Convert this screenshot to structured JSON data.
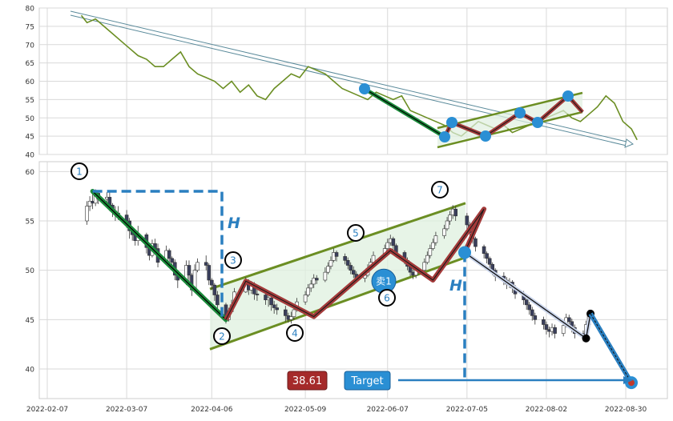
{
  "chart_data": [
    {
      "type": "line",
      "panel": "indicator",
      "ylim": [
        40,
        80
      ],
      "yticks": [
        "40",
        "45",
        "50",
        "55",
        "60",
        "65",
        "70",
        "75",
        "80"
      ],
      "grid": true,
      "series": [
        {
          "color": "#6b8e23",
          "x": [
            "2022-02-19",
            "2022-02-21",
            "2022-02-24",
            "2022-02-27",
            "2022-03-02",
            "2022-03-05",
            "2022-03-08",
            "2022-03-11",
            "2022-03-14",
            "2022-03-17",
            "2022-03-20",
            "2022-03-23",
            "2022-03-26",
            "2022-03-29",
            "2022-04-01",
            "2022-04-04",
            "2022-04-07",
            "2022-04-10",
            "2022-04-13",
            "2022-04-16",
            "2022-04-19",
            "2022-04-22",
            "2022-04-25",
            "2022-04-28",
            "2022-05-01",
            "2022-05-04",
            "2022-05-07",
            "2022-05-10",
            "2022-05-13",
            "2022-05-16",
            "2022-05-19",
            "2022-05-22",
            "2022-05-25",
            "2022-05-28",
            "2022-05-31",
            "2022-06-03",
            "2022-06-06",
            "2022-06-09",
            "2022-06-12",
            "2022-06-15",
            "2022-06-18",
            "2022-06-21",
            "2022-06-24",
            "2022-06-27",
            "2022-06-30",
            "2022-07-03",
            "2022-07-06",
            "2022-07-09",
            "2022-07-12",
            "2022-07-15",
            "2022-07-18",
            "2022-07-21",
            "2022-07-24",
            "2022-07-27",
            "2022-07-30",
            "2022-08-02",
            "2022-08-05",
            "2022-08-08",
            "2022-08-11",
            "2022-08-14",
            "2022-08-17",
            "2022-08-20",
            "2022-08-23",
            "2022-08-26",
            "2022-08-29",
            "2022-09-01",
            "2022-09-03"
          ],
          "values": [
            78,
            76,
            77,
            75,
            73,
            71,
            69,
            67,
            66,
            64,
            64,
            66,
            68,
            64,
            62,
            61,
            60,
            58,
            60,
            57,
            59,
            56,
            55,
            58,
            60,
            62,
            61,
            64,
            63,
            62,
            60,
            58,
            57,
            56,
            55,
            57,
            56,
            55,
            56,
            52,
            51,
            50,
            49,
            48,
            46,
            45,
            47,
            49,
            48,
            47,
            48,
            46,
            47,
            48,
            49,
            50,
            51,
            52,
            50,
            49,
            51,
            53,
            56,
            54,
            49,
            47,
            44
          ]
        }
      ]
    },
    {
      "type": "candlestick",
      "panel": "price",
      "ylim": [
        37,
        61
      ],
      "yticks": [
        "40",
        "45",
        "50",
        "55",
        "60"
      ],
      "xlim": [
        "2022-02-07",
        "2022-09-10"
      ],
      "xticks": [
        "2022-02-07",
        "2022-03-07",
        "2022-04-06",
        "2022-05-09",
        "2022-06-07",
        "2022-07-05",
        "2022-08-02",
        "2022-08-30"
      ],
      "grid": true,
      "candles": [
        [
          "2022-02-21",
          55.0,
          56.5,
          54.6,
          57.0
        ],
        [
          "2022-02-22",
          56.5,
          57.0,
          56.0,
          57.5
        ],
        [
          "2022-02-23",
          57.0,
          56.8,
          56.2,
          57.7
        ],
        [
          "2022-02-24",
          56.8,
          57.8,
          56.5,
          58.2
        ],
        [
          "2022-02-25",
          57.8,
          57.2,
          56.7,
          58.1
        ],
        [
          "2022-02-28",
          57.2,
          57.4,
          56.8,
          57.9
        ],
        [
          "2022-03-01",
          57.4,
          56.6,
          56.0,
          57.9
        ],
        [
          "2022-03-02",
          56.6,
          56.0,
          55.4,
          56.8
        ],
        [
          "2022-03-03",
          56.0,
          55.8,
          55.0,
          56.5
        ],
        [
          "2022-03-04",
          55.8,
          55.6,
          55.1,
          56.5
        ],
        [
          "2022-03-07",
          55.6,
          55.0,
          54.3,
          56.1
        ],
        [
          "2022-03-08",
          55.0,
          54.0,
          53.2,
          55.3
        ],
        [
          "2022-03-09",
          54.0,
          53.6,
          53.0,
          54.4
        ],
        [
          "2022-03-10",
          53.6,
          53.0,
          52.5,
          54.1
        ],
        [
          "2022-03-11",
          53.0,
          53.6,
          52.5,
          54.5
        ],
        [
          "2022-03-14",
          53.6,
          52.3,
          51.7,
          53.8
        ],
        [
          "2022-03-15",
          52.3,
          51.5,
          51.0,
          52.7
        ],
        [
          "2022-03-16",
          51.5,
          52.7,
          51.3,
          53.1
        ],
        [
          "2022-03-17",
          52.7,
          52.2,
          51.7,
          53.2
        ],
        [
          "2022-03-18",
          52.2,
          50.8,
          50.3,
          52.7
        ],
        [
          "2022-03-21",
          50.8,
          52.0,
          50.7,
          52.5
        ],
        [
          "2022-03-22",
          52.0,
          51.2,
          50.7,
          52.2
        ],
        [
          "2022-03-23",
          51.2,
          50.8,
          50.3,
          51.4
        ],
        [
          "2022-03-24",
          50.8,
          49.5,
          49.0,
          51.1
        ],
        [
          "2022-03-25",
          49.5,
          49.0,
          48.2,
          49.8
        ],
        [
          "2022-03-28",
          49.0,
          50.5,
          48.5,
          51.0
        ],
        [
          "2022-03-29",
          50.5,
          49.5,
          48.8,
          51.0
        ],
        [
          "2022-03-30",
          49.5,
          48.0,
          47.4,
          49.7
        ],
        [
          "2022-03-31",
          48.0,
          50.0,
          47.8,
          50.6
        ],
        [
          "2022-04-01",
          50.0,
          50.8,
          49.8,
          51.2
        ],
        [
          "2022-04-04",
          50.8,
          50.5,
          50.0,
          51.5
        ],
        [
          "2022-04-05",
          50.5,
          49.0,
          48.5,
          50.7
        ],
        [
          "2022-04-06",
          49.0,
          48.5,
          48.0,
          49.2
        ],
        [
          "2022-04-07",
          48.5,
          47.5,
          46.9,
          48.7
        ],
        [
          "2022-04-08",
          47.5,
          46.5,
          46.1,
          47.9
        ],
        [
          "2022-04-11",
          46.5,
          45.0,
          44.6,
          46.7
        ],
        [
          "2022-04-12",
          45.0,
          45.8,
          44.8,
          46.2
        ],
        [
          "2022-04-13",
          45.8,
          46.5,
          45.6,
          47.0
        ],
        [
          "2022-04-14",
          46.5,
          47.8,
          46.3,
          48.2
        ],
        [
          "2022-04-18",
          47.8,
          48.9,
          47.7,
          49.3
        ],
        [
          "2022-04-19",
          48.9,
          48.0,
          47.5,
          49.1
        ],
        [
          "2022-04-20",
          48.0,
          48.5,
          47.6,
          48.9
        ],
        [
          "2022-04-21",
          48.5,
          47.6,
          47.0,
          48.8
        ],
        [
          "2022-04-22",
          47.6,
          47.5,
          46.9,
          48.3
        ],
        [
          "2022-04-25",
          47.5,
          47.0,
          46.5,
          48.0
        ],
        [
          "2022-04-26",
          47.0,
          47.2,
          46.3,
          47.6
        ],
        [
          "2022-04-27",
          47.2,
          46.5,
          45.9,
          47.5
        ],
        [
          "2022-04-28",
          46.5,
          46.2,
          45.6,
          46.9
        ],
        [
          "2022-04-29",
          46.2,
          46.0,
          45.5,
          46.6
        ],
        [
          "2022-05-02",
          46.0,
          45.4,
          44.8,
          46.4
        ],
        [
          "2022-05-03",
          45.4,
          45.0,
          44.7,
          45.7
        ],
        [
          "2022-05-04",
          45.0,
          45.3,
          44.6,
          45.8
        ],
        [
          "2022-05-05",
          45.3,
          46.0,
          45.0,
          46.4
        ],
        [
          "2022-05-06",
          46.0,
          46.8,
          45.8,
          47.2
        ],
        [
          "2022-05-09",
          46.8,
          47.5,
          46.5,
          47.9
        ],
        [
          "2022-05-10",
          47.5,
          48.2,
          47.3,
          48.6
        ],
        [
          "2022-05-11",
          48.2,
          48.6,
          47.8,
          49.0
        ],
        [
          "2022-05-12",
          48.6,
          49.2,
          48.2,
          49.6
        ],
        [
          "2022-05-13",
          49.2,
          49.0,
          48.6,
          49.5
        ],
        [
          "2022-05-16",
          49.0,
          49.8,
          48.8,
          50.3
        ],
        [
          "2022-05-17",
          49.8,
          50.4,
          49.6,
          50.8
        ],
        [
          "2022-05-18",
          50.4,
          51.0,
          50.1,
          51.4
        ],
        [
          "2022-05-19",
          51.0,
          51.8,
          50.8,
          52.2
        ],
        [
          "2022-05-20",
          51.8,
          51.4,
          50.9,
          52.0
        ],
        [
          "2022-05-23",
          51.4,
          51.0,
          50.6,
          51.7
        ],
        [
          "2022-05-24",
          51.0,
          50.5,
          50.1,
          51.3
        ],
        [
          "2022-05-25",
          50.5,
          50.0,
          49.6,
          50.8
        ],
        [
          "2022-05-26",
          50.0,
          49.6,
          49.2,
          50.4
        ],
        [
          "2022-05-27",
          49.6,
          49.2,
          48.8,
          49.9
        ],
        [
          "2022-05-30",
          49.2,
          49.5,
          48.8,
          49.9
        ],
        [
          "2022-05-31",
          49.5,
          50.2,
          49.3,
          50.6
        ],
        [
          "2022-06-01",
          50.2,
          50.8,
          50.0,
          51.2
        ],
        [
          "2022-06-02",
          50.8,
          51.5,
          50.6,
          51.9
        ],
        [
          "2022-06-06",
          51.5,
          52.2,
          51.3,
          52.6
        ],
        [
          "2022-06-07",
          52.2,
          52.8,
          52.0,
          53.2
        ],
        [
          "2022-06-08",
          52.8,
          53.2,
          52.5,
          53.6
        ],
        [
          "2022-06-09",
          53.2,
          52.5,
          52.0,
          53.4
        ],
        [
          "2022-06-10",
          52.5,
          51.8,
          51.3,
          52.7
        ],
        [
          "2022-06-13",
          51.8,
          51.0,
          50.6,
          52.0
        ],
        [
          "2022-06-14",
          51.0,
          50.4,
          50.0,
          51.3
        ],
        [
          "2022-06-15",
          50.4,
          49.8,
          49.4,
          50.7
        ],
        [
          "2022-06-16",
          49.8,
          49.5,
          49.1,
          50.1
        ],
        [
          "2022-06-17",
          49.5,
          50.0,
          49.2,
          50.4
        ],
        [
          "2022-06-20",
          50.0,
          50.8,
          49.8,
          51.2
        ],
        [
          "2022-06-21",
          50.8,
          51.5,
          50.6,
          51.9
        ],
        [
          "2022-06-22",
          51.5,
          52.2,
          51.2,
          52.6
        ],
        [
          "2022-06-23",
          52.2,
          52.8,
          52.0,
          53.2
        ],
        [
          "2022-06-24",
          52.8,
          53.5,
          52.5,
          53.9
        ],
        [
          "2022-06-27",
          53.5,
          54.2,
          53.2,
          54.6
        ],
        [
          "2022-06-28",
          54.2,
          55.0,
          54.0,
          55.4
        ],
        [
          "2022-06-29",
          55.0,
          55.6,
          54.6,
          56.0
        ],
        [
          "2022-06-30",
          55.6,
          56.2,
          55.2,
          56.6
        ],
        [
          "2022-07-01",
          56.2,
          55.5,
          55.0,
          56.5
        ],
        [
          "2022-07-05",
          55.5,
          54.6,
          54.1,
          55.8
        ],
        [
          "2022-07-06",
          54.6,
          53.8,
          53.3,
          54.9
        ],
        [
          "2022-07-07",
          53.8,
          53.2,
          52.7,
          54.1
        ],
        [
          "2022-07-08",
          53.2,
          52.4,
          51.9,
          53.4
        ],
        [
          "2022-07-11",
          52.4,
          51.7,
          51.2,
          52.6
        ],
        [
          "2022-07-12",
          51.7,
          51.2,
          50.7,
          51.9
        ],
        [
          "2022-07-13",
          51.2,
          50.6,
          50.1,
          51.4
        ],
        [
          "2022-07-14",
          50.6,
          50.0,
          49.5,
          50.8
        ],
        [
          "2022-07-15",
          50.0,
          49.4,
          48.9,
          50.2
        ],
        [
          "2022-07-18",
          49.4,
          49.0,
          48.5,
          49.8
        ],
        [
          "2022-07-19",
          49.0,
          48.6,
          48.1,
          49.3
        ],
        [
          "2022-07-20",
          48.6,
          48.8,
          48.2,
          49.2
        ],
        [
          "2022-07-21",
          48.8,
          48.2,
          47.7,
          49.0
        ],
        [
          "2022-07-22",
          48.2,
          47.6,
          47.1,
          48.5
        ],
        [
          "2022-07-25",
          47.6,
          47.0,
          46.5,
          47.9
        ],
        [
          "2022-07-26",
          47.0,
          46.5,
          46.0,
          47.3
        ],
        [
          "2022-07-27",
          46.5,
          46.0,
          45.5,
          46.8
        ],
        [
          "2022-07-28",
          46.0,
          45.4,
          44.9,
          46.3
        ],
        [
          "2022-07-29",
          45.4,
          45.0,
          44.5,
          45.7
        ],
        [
          "2022-08-01",
          45.0,
          44.5,
          44.0,
          45.3
        ],
        [
          "2022-08-02",
          44.5,
          44.0,
          43.5,
          44.8
        ],
        [
          "2022-08-03",
          44.0,
          43.8,
          43.2,
          44.3
        ],
        [
          "2022-08-04",
          43.8,
          44.2,
          43.4,
          44.6
        ],
        [
          "2022-08-05",
          44.2,
          43.6,
          43.1,
          44.5
        ],
        [
          "2022-08-08",
          43.6,
          44.4,
          43.3,
          44.8
        ],
        [
          "2022-08-09",
          44.4,
          45.2,
          44.2,
          45.6
        ],
        [
          "2022-08-10",
          45.2,
          44.8,
          44.3,
          45.5
        ],
        [
          "2022-08-11",
          44.8,
          44.2,
          43.7,
          45.1
        ],
        [
          "2022-08-12",
          44.2,
          43.6,
          43.1,
          44.5
        ],
        [
          "2022-08-15",
          43.6,
          43.3,
          42.8,
          43.9
        ],
        [
          "2022-08-16",
          43.3,
          44.5,
          43.1,
          44.9
        ],
        [
          "2022-08-17",
          44.5,
          45.6,
          44.3,
          46.0
        ]
      ],
      "pattern_points": [
        {
          "label": "1",
          "x": "2022-02-23",
          "y": 58.0
        },
        {
          "label": "2",
          "x": "2022-04-11",
          "y": 45.0
        },
        {
          "label": "3",
          "x": "2022-04-18",
          "y": 48.9
        },
        {
          "label": "4",
          "x": "2022-05-12",
          "y": 45.3
        },
        {
          "label": "5",
          "x": "2022-06-08",
          "y": 52.0
        },
        {
          "label": "6",
          "x": "2022-06-23",
          "y": 49.0
        },
        {
          "label": "7",
          "x": "2022-07-11",
          "y": 56.2
        }
      ],
      "annotations": {
        "height_marker": "H",
        "sell_marker": "卖1",
        "target_label": "Target",
        "target_value": "38.61"
      }
    }
  ]
}
